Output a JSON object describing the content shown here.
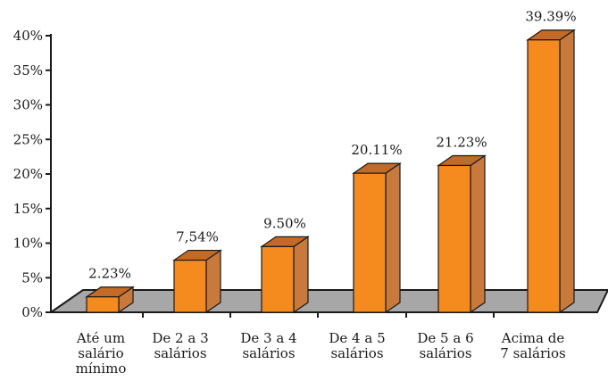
{
  "chart_data": {
    "type": "bar",
    "categories": [
      [
        "Até um",
        "salário",
        "mínimo"
      ],
      [
        "De 2 a 3",
        "salários"
      ],
      [
        "De 3 a 4",
        "salários"
      ],
      [
        "De 4 a 5",
        "salários"
      ],
      [
        "De 5 a 6",
        "salários"
      ],
      [
        "Acima de",
        "7 salários"
      ]
    ],
    "values": [
      2.23,
      7.54,
      9.5,
      20.11,
      21.23,
      39.39
    ],
    "data_labels": [
      "2.23%",
      "7,54%",
      "9.50%",
      "20.11%",
      "21.23%",
      "39.39%"
    ],
    "yticks": [
      "0%",
      "5%",
      "10%",
      "15%",
      "20%",
      "25%",
      "30%",
      "35%",
      "40%"
    ],
    "ylim": [
      0,
      40
    ],
    "title": "",
    "xlabel": "",
    "ylabel": "",
    "grid": false,
    "legend": "none",
    "style": "3d-bars"
  },
  "colors": {
    "bar_front": "#f58a1f",
    "bar_top": "#c26a26",
    "bar_side": "#c87a3c",
    "floor": "#a7a7a7",
    "axis": "#1a1a1a"
  }
}
